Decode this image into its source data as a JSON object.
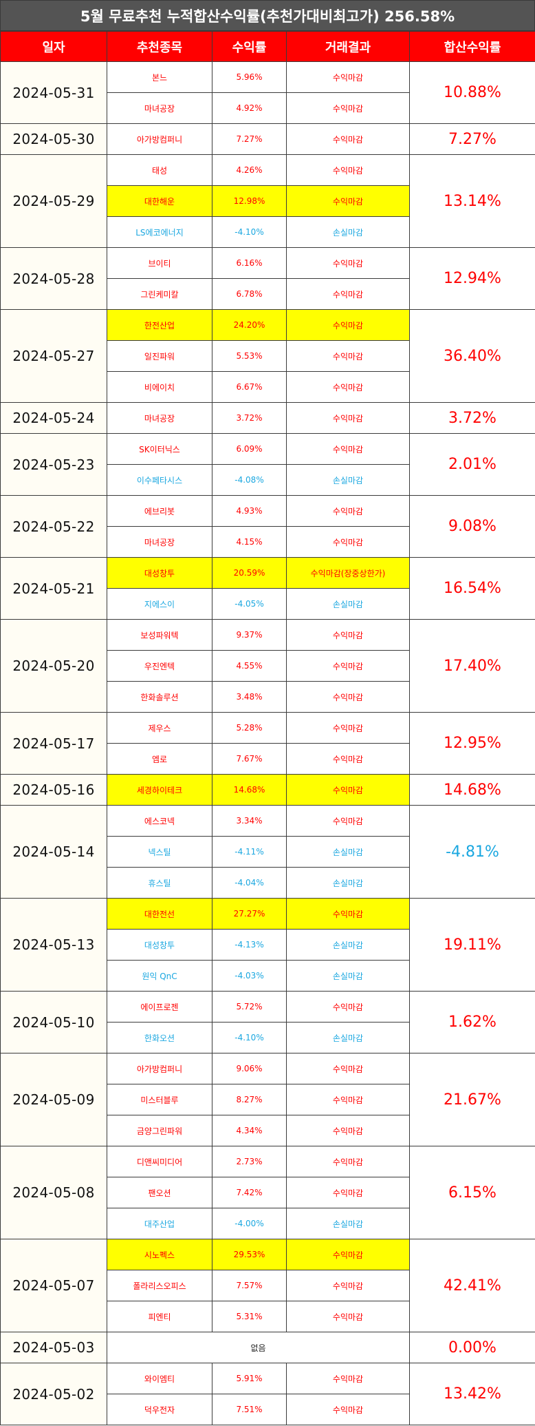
{
  "title": "5월 무료추천 누적합산수익률(추천가대비최고가) 256.58%",
  "headers": [
    "일자",
    "추천종목",
    "수익률",
    "거래결과",
    "합산수익률"
  ],
  "colors": {
    "profit": "#ff0000",
    "loss": "#1aa7e0",
    "highlight": "#ffff00",
    "header_bg": "#ff0000",
    "title_bg": "#545454"
  },
  "groups": [
    {
      "date": "2024-05-31",
      "total": "10.88%",
      "total_loss": false,
      "rows": [
        {
          "stock": "본느",
          "rate": "5.96%",
          "result": "수익마감",
          "loss": false,
          "hl": false
        },
        {
          "stock": "마녀공장",
          "rate": "4.92%",
          "result": "수익마감",
          "loss": false,
          "hl": false
        }
      ]
    },
    {
      "date": "2024-05-30",
      "total": "7.27%",
      "total_loss": false,
      "rows": [
        {
          "stock": "아가방컴퍼니",
          "rate": "7.27%",
          "result": "수익마감",
          "loss": false,
          "hl": false
        }
      ]
    },
    {
      "date": "2024-05-29",
      "total": "13.14%",
      "total_loss": false,
      "rows": [
        {
          "stock": "태성",
          "rate": "4.26%",
          "result": "수익마감",
          "loss": false,
          "hl": false
        },
        {
          "stock": "대한해운",
          "rate": "12.98%",
          "result": "수익마감",
          "loss": false,
          "hl": true
        },
        {
          "stock": "LS에코에너지",
          "rate": "-4.10%",
          "result": "손실마감",
          "loss": true,
          "hl": false
        }
      ]
    },
    {
      "date": "2024-05-28",
      "total": "12.94%",
      "total_loss": false,
      "rows": [
        {
          "stock": "브이티",
          "rate": "6.16%",
          "result": "수익마감",
          "loss": false,
          "hl": false
        },
        {
          "stock": "그린케미칼",
          "rate": "6.78%",
          "result": "수익마감",
          "loss": false,
          "hl": false
        }
      ]
    },
    {
      "date": "2024-05-27",
      "total": "36.40%",
      "total_loss": false,
      "rows": [
        {
          "stock": "한전산업",
          "rate": "24.20%",
          "result": "수익마감",
          "loss": false,
          "hl": true
        },
        {
          "stock": "일진파워",
          "rate": "5.53%",
          "result": "수익마감",
          "loss": false,
          "hl": false
        },
        {
          "stock": "비에이치",
          "rate": "6.67%",
          "result": "수익마감",
          "loss": false,
          "hl": false
        }
      ]
    },
    {
      "date": "2024-05-24",
      "total": "3.72%",
      "total_loss": false,
      "rows": [
        {
          "stock": "마녀공장",
          "rate": "3.72%",
          "result": "수익마감",
          "loss": false,
          "hl": false
        }
      ]
    },
    {
      "date": "2024-05-23",
      "total": "2.01%",
      "total_loss": false,
      "rows": [
        {
          "stock": "SK이터닉스",
          "rate": "6.09%",
          "result": "수익마감",
          "loss": false,
          "hl": false
        },
        {
          "stock": "이수페타시스",
          "rate": "-4.08%",
          "result": "손실마감",
          "loss": true,
          "hl": false
        }
      ]
    },
    {
      "date": "2024-05-22",
      "total": "9.08%",
      "total_loss": false,
      "rows": [
        {
          "stock": "에브리봇",
          "rate": "4.93%",
          "result": "수익마감",
          "loss": false,
          "hl": false
        },
        {
          "stock": "마녀공장",
          "rate": "4.15%",
          "result": "수익마감",
          "loss": false,
          "hl": false
        }
      ]
    },
    {
      "date": "2024-05-21",
      "total": "16.54%",
      "total_loss": false,
      "rows": [
        {
          "stock": "대성창투",
          "rate": "20.59%",
          "result": "수익마감(장중상한가)",
          "loss": false,
          "hl": true
        },
        {
          "stock": "지에스이",
          "rate": "-4.05%",
          "result": "손실마감",
          "loss": true,
          "hl": false
        }
      ]
    },
    {
      "date": "2024-05-20",
      "total": "17.40%",
      "total_loss": false,
      "rows": [
        {
          "stock": "보성파워텍",
          "rate": "9.37%",
          "result": "수익마감",
          "loss": false,
          "hl": false
        },
        {
          "stock": "우진엔텍",
          "rate": "4.55%",
          "result": "수익마감",
          "loss": false,
          "hl": false
        },
        {
          "stock": "한화솔루션",
          "rate": "3.48%",
          "result": "수익마감",
          "loss": false,
          "hl": false
        }
      ]
    },
    {
      "date": "2024-05-17",
      "total": "12.95%",
      "total_loss": false,
      "rows": [
        {
          "stock": "제우스",
          "rate": "5.28%",
          "result": "수익마감",
          "loss": false,
          "hl": false
        },
        {
          "stock": "엠로",
          "rate": "7.67%",
          "result": "수익마감",
          "loss": false,
          "hl": false
        }
      ]
    },
    {
      "date": "2024-05-16",
      "total": "14.68%",
      "total_loss": false,
      "rows": [
        {
          "stock": "세경하이테크",
          "rate": "14.68%",
          "result": "수익마감",
          "loss": false,
          "hl": true
        }
      ]
    },
    {
      "date": "2024-05-14",
      "total": "-4.81%",
      "total_loss": true,
      "rows": [
        {
          "stock": "에스코넥",
          "rate": "3.34%",
          "result": "수익마감",
          "loss": false,
          "hl": false
        },
        {
          "stock": "넥스틸",
          "rate": "-4.11%",
          "result": "손실마감",
          "loss": true,
          "hl": false
        },
        {
          "stock": "휴스틸",
          "rate": "-4.04%",
          "result": "손실마감",
          "loss": true,
          "hl": false
        }
      ]
    },
    {
      "date": "2024-05-13",
      "total": "19.11%",
      "total_loss": false,
      "rows": [
        {
          "stock": "대한전선",
          "rate": "27.27%",
          "result": "수익마감",
          "loss": false,
          "hl": true
        },
        {
          "stock": "대성창투",
          "rate": "-4.13%",
          "result": "손실마감",
          "loss": true,
          "hl": false
        },
        {
          "stock": "원익 QnC",
          "rate": "-4.03%",
          "result": "손실마감",
          "loss": true,
          "hl": false
        }
      ]
    },
    {
      "date": "2024-05-10",
      "total": "1.62%",
      "total_loss": false,
      "rows": [
        {
          "stock": "에이프로젠",
          "rate": "5.72%",
          "result": "수익마감",
          "loss": false,
          "hl": false
        },
        {
          "stock": "한화오션",
          "rate": "-4.10%",
          "result": "손실마감",
          "loss": true,
          "hl": false
        }
      ]
    },
    {
      "date": "2024-05-09",
      "total": "21.67%",
      "total_loss": false,
      "rows": [
        {
          "stock": "아가방컴퍼니",
          "rate": "9.06%",
          "result": "수익마감",
          "loss": false,
          "hl": false
        },
        {
          "stock": "미스터블루",
          "rate": "8.27%",
          "result": "수익마감",
          "loss": false,
          "hl": false
        },
        {
          "stock": "금양그린파워",
          "rate": "4.34%",
          "result": "수익마감",
          "loss": false,
          "hl": false
        }
      ]
    },
    {
      "date": "2024-05-08",
      "total": "6.15%",
      "total_loss": false,
      "rows": [
        {
          "stock": "디앤씨미디어",
          "rate": "2.73%",
          "result": "수익마감",
          "loss": false,
          "hl": false
        },
        {
          "stock": "팬오션",
          "rate": "7.42%",
          "result": "수익마감",
          "loss": false,
          "hl": false
        },
        {
          "stock": "대주산업",
          "rate": "-4.00%",
          "result": "손실마감",
          "loss": true,
          "hl": false
        }
      ]
    },
    {
      "date": "2024-05-07",
      "total": "42.41%",
      "total_loss": false,
      "rows": [
        {
          "stock": "시노펙스",
          "rate": "29.53%",
          "result": "수익마감",
          "loss": false,
          "hl": true
        },
        {
          "stock": "폴라리스오피스",
          "rate": "7.57%",
          "result": "수익마감",
          "loss": false,
          "hl": false
        },
        {
          "stock": "피엔티",
          "rate": "5.31%",
          "result": "수익마감",
          "loss": false,
          "hl": false
        }
      ]
    },
    {
      "date": "2024-05-03",
      "total": "0.00%",
      "total_loss": false,
      "none_text": "없음",
      "rows": []
    },
    {
      "date": "2024-05-02",
      "total": "13.42%",
      "total_loss": false,
      "rows": [
        {
          "stock": "와이엠티",
          "rate": "5.91%",
          "result": "수익마감",
          "loss": false,
          "hl": false
        },
        {
          "stock": "덕우전자",
          "rate": "7.51%",
          "result": "수익마감",
          "loss": false,
          "hl": false
        }
      ]
    }
  ]
}
